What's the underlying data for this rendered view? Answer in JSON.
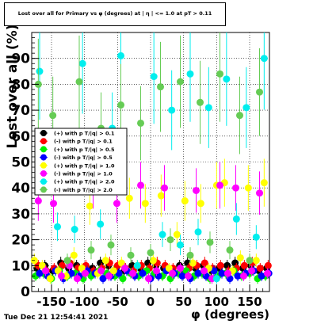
{
  "title": "Lost over all for Primary vs φ (degrees) at | η | <= 1.0 at pT > 0.11",
  "timestamp": "Tue Dec 21 12:54:41 2021",
  "chart_data": {
    "type": "scatter",
    "xlabel": "φ (degrees)",
    "ylabel": "Lost over all (%)",
    "xlim": [
      -180,
      180
    ],
    "ylim": [
      0,
      100
    ],
    "x_ticks": [
      -150,
      -100,
      -50,
      0,
      50,
      100,
      150
    ],
    "y_ticks": [
      0,
      10,
      20,
      30,
      40,
      50,
      60,
      70,
      80,
      90
    ],
    "legend_position": "middle-left",
    "series": [
      {
        "name": "(+) with p T/|q| > 0.1",
        "color": "#000000",
        "x": [
          -172,
          -160,
          -148,
          -136,
          -124,
          -112,
          -100,
          -88,
          -76,
          -64,
          -52,
          -40,
          -28,
          -16,
          -4,
          8,
          20,
          32,
          44,
          56,
          68,
          80,
          92,
          104,
          116,
          128,
          140,
          152,
          164,
          176
        ],
        "y": [
          9,
          10,
          8,
          11,
          9,
          10,
          8,
          9,
          11,
          10,
          9,
          8,
          10,
          9,
          11,
          10,
          9,
          8,
          10,
          11,
          9,
          10,
          8,
          9,
          10,
          11,
          9,
          10,
          8,
          9
        ]
      },
      {
        "name": "(-) with p T/|q| > 0.1",
        "color": "#ff0000",
        "x": [
          -170,
          -158,
          -146,
          -134,
          -122,
          -110,
          -98,
          -86,
          -74,
          -62,
          -50,
          -38,
          -26,
          -14,
          -2,
          10,
          22,
          34,
          46,
          58,
          70,
          82,
          94,
          106,
          118,
          130,
          142,
          154,
          166,
          178
        ],
        "y": [
          10,
          8,
          9,
          10,
          11,
          9,
          10,
          8,
          9,
          11,
          10,
          9,
          8,
          10,
          9,
          11,
          10,
          9,
          8,
          9,
          10,
          11,
          9,
          10,
          8,
          9,
          10,
          11,
          9,
          10
        ]
      },
      {
        "name": "(+) with p T/|q| > 0.5",
        "color": "#00ee00",
        "x": [
          -174,
          -162,
          -150,
          -138,
          -126,
          -114,
          -102,
          -90,
          -78,
          -66,
          -54,
          -42,
          -30,
          -18,
          -6,
          6,
          18,
          30,
          42,
          54,
          66,
          78,
          90,
          102,
          114,
          126,
          138,
          150,
          162,
          174
        ],
        "y": [
          6,
          7,
          5,
          8,
          6,
          7,
          5,
          6,
          8,
          7,
          6,
          5,
          7,
          6,
          8,
          7,
          6,
          5,
          7,
          8,
          6,
          7,
          5,
          6,
          7,
          8,
          6,
          7,
          5,
          6
        ]
      },
      {
        "name": "(-) with p T/|q| > 0.5",
        "color": "#0000ff",
        "x": [
          -168,
          -156,
          -144,
          -132,
          -120,
          -108,
          -96,
          -84,
          -72,
          -60,
          -48,
          -36,
          -24,
          -12,
          0,
          12,
          24,
          36,
          48,
          60,
          72,
          84,
          96,
          108,
          120,
          132,
          144,
          156,
          168,
          179
        ],
        "y": [
          7,
          6,
          8,
          5,
          7,
          6,
          8,
          7,
          5,
          6,
          7,
          8,
          6,
          7,
          5,
          6,
          8,
          7,
          6,
          5,
          7,
          6,
          8,
          7,
          5,
          6,
          7,
          8,
          6,
          7
        ]
      },
      {
        "name": "(+) with p T/|q| > 1.0",
        "color": "#ffff00",
        "x": [
          -176,
          -164,
          -152,
          -140,
          -128,
          -116,
          -104,
          -92,
          -80,
          -68,
          -56,
          -44,
          -32,
          -20,
          -8,
          4,
          16,
          28,
          40,
          52,
          64,
          76,
          88,
          100,
          112,
          124,
          136,
          148,
          160,
          172
        ],
        "y": [
          12,
          10,
          5,
          8,
          6,
          14,
          9,
          33,
          7,
          12,
          8,
          11,
          36,
          10,
          34,
          12,
          37,
          9,
          22,
          35,
          11,
          34,
          9,
          41,
          42,
          8,
          13,
          40,
          12,
          42
        ]
      },
      {
        "name": "(-) with p T/|q| > 1.0",
        "color": "#ff00ff",
        "x": [
          -170,
          -159,
          -147,
          -135,
          -123,
          -111,
          -99,
          -87,
          -75,
          -63,
          -51,
          -39,
          -27,
          -15,
          -3,
          9,
          21,
          33,
          45,
          57,
          69,
          81,
          93,
          105,
          117,
          129,
          141,
          153,
          165,
          177
        ],
        "y": [
          35,
          8,
          34,
          6,
          10,
          5,
          7,
          41,
          8,
          6,
          34,
          9,
          7,
          41,
          5,
          8,
          40,
          7,
          9,
          6,
          39,
          8,
          5,
          41,
          7,
          40,
          6,
          8,
          38,
          7
        ]
      },
      {
        "name": "(+) with p T/|q| > 2.0",
        "color": "#00eeee",
        "x": [
          -168,
          -141,
          -115,
          -103,
          -76,
          -58,
          -45,
          -20,
          5,
          18,
          32,
          45,
          60,
          72,
          88,
          100,
          115,
          130,
          145,
          160,
          172
        ],
        "y": [
          85,
          25,
          24,
          88,
          26,
          63,
          91,
          10,
          83,
          22,
          70,
          18,
          84,
          23,
          71,
          5,
          82,
          28,
          71,
          21,
          90
        ]
      },
      {
        "name": "(-) with p T/|q| > 2.0",
        "color": "#66cc55",
        "x": [
          -170,
          -148,
          -126,
          -108,
          -90,
          -75,
          -60,
          -45,
          -30,
          -15,
          0,
          15,
          30,
          45,
          60,
          75,
          90,
          105,
          120,
          135,
          150,
          165
        ],
        "y": [
          80,
          68,
          12,
          81,
          16,
          63,
          18,
          72,
          14,
          65,
          15,
          79,
          20,
          81,
          14,
          73,
          19,
          84,
          16,
          68,
          12,
          77
        ]
      }
    ]
  }
}
